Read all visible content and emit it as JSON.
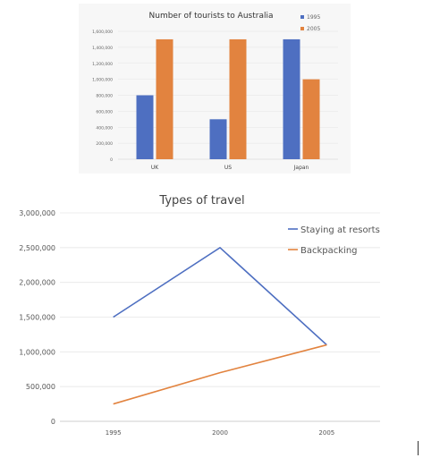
{
  "chart_data": [
    {
      "type": "bar",
      "title": "Number of tourists to Australia",
      "categories": [
        "UK",
        "US",
        "Japan"
      ],
      "series": [
        {
          "name": "1995",
          "values": [
            800000,
            500000,
            1500000
          ],
          "color": "#4e6fc1"
        },
        {
          "name": "2005",
          "values": [
            1500000,
            1500000,
            1000000
          ],
          "color": "#e2833f"
        }
      ],
      "ylim": [
        0,
        1600000
      ],
      "yticks": [
        "0",
        "200,000",
        "400,000",
        "600,000",
        "800,000",
        "1,000,000",
        "1,200,000",
        "1,400,000",
        "1,600,000"
      ],
      "grid": true,
      "legend": "top-right"
    },
    {
      "type": "line",
      "title": "Types of travel",
      "x": [
        "1995",
        "2000",
        "2005"
      ],
      "series": [
        {
          "name": "Staying at resorts",
          "values": [
            1500000,
            2500000,
            1100000
          ],
          "color": "#4e6fc1"
        },
        {
          "name": "Backpacking",
          "values": [
            250000,
            700000,
            1100000
          ],
          "color": "#e2833f"
        }
      ],
      "ylim": [
        0,
        3000000
      ],
      "yticks": [
        "0",
        "500,000",
        "1,000,000",
        "1,500,000",
        "2,000,000",
        "2,500,000",
        "3,000,000"
      ],
      "grid": true,
      "legend": "top-right"
    }
  ]
}
